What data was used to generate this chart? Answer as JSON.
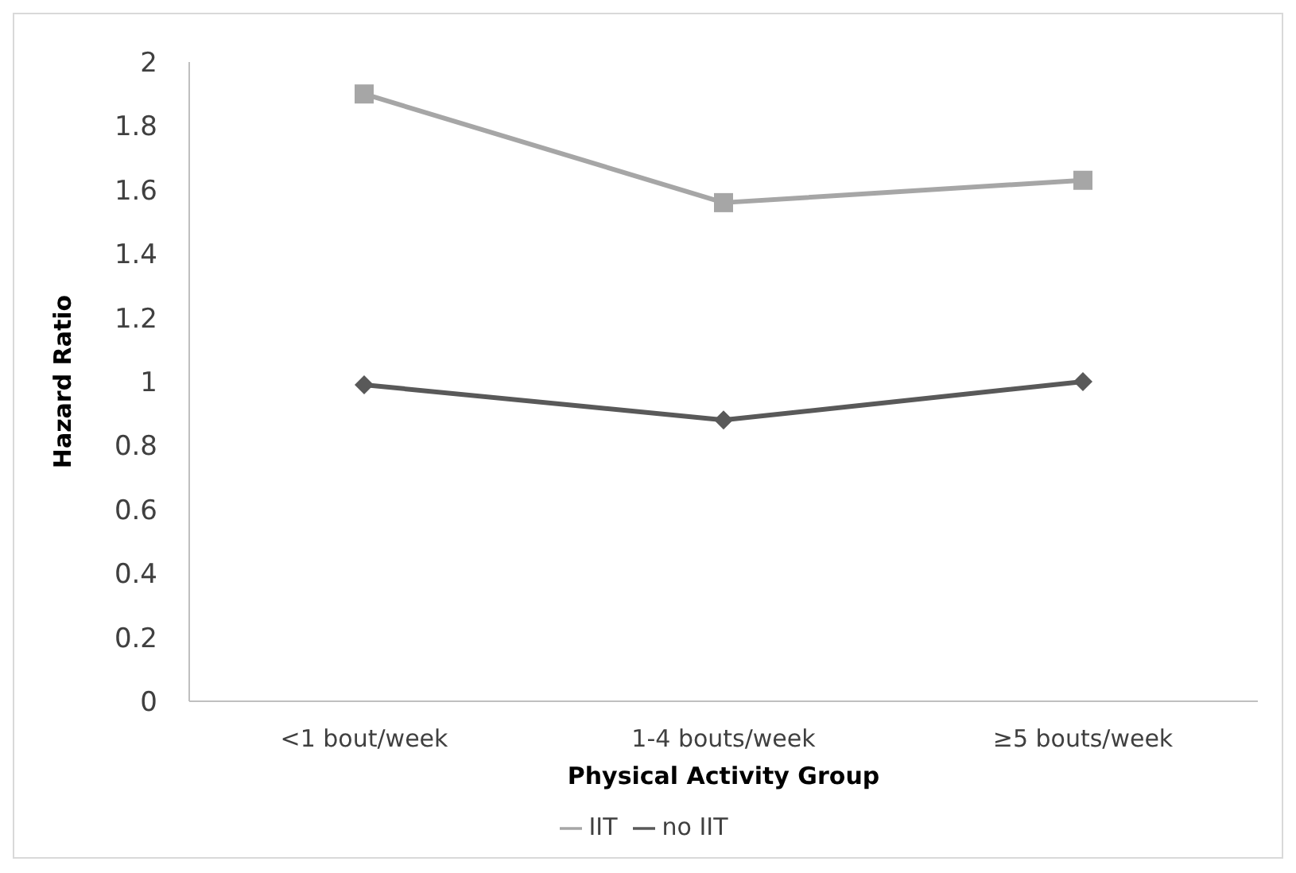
{
  "chart_data": {
    "type": "line",
    "xlabel": "Physical Activity Group",
    "ylabel": "Hazard Ratio",
    "categories": [
      "<1 bout/week",
      "1-4 bouts/week",
      "≥5 bouts/week"
    ],
    "series": [
      {
        "name": "no IIT",
        "color": "#595959",
        "marker": "diamond",
        "values": [
          0.99,
          0.88,
          1.0
        ]
      },
      {
        "name": "IIT",
        "color": "#a6a6a6",
        "marker": "square",
        "values": [
          1.9,
          1.56,
          1.63
        ]
      }
    ],
    "ylim": [
      0,
      2
    ],
    "yticks": [
      0,
      0.2,
      0.4,
      0.6,
      0.8,
      1,
      1.2,
      1.4,
      1.6,
      1.8,
      2
    ],
    "grid": false,
    "legend": "bottom"
  }
}
